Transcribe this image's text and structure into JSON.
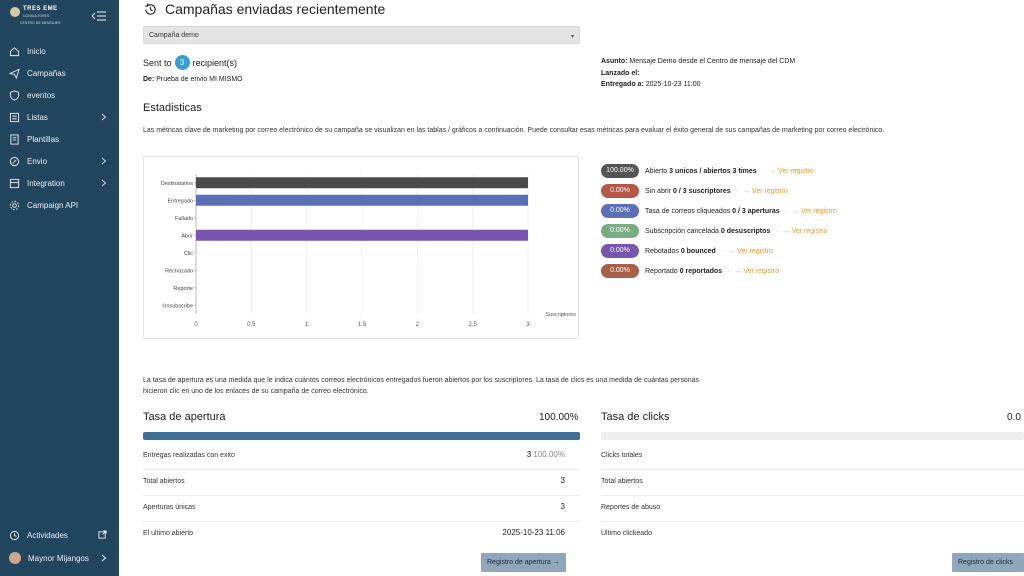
{
  "brand": {
    "name": "TRES EME",
    "sub": "CONSULTORES",
    "sub2": "CENTRO DE MENSAJES"
  },
  "nav": [
    {
      "label": "Inicio",
      "icon": "home-icon",
      "chevron": false
    },
    {
      "label": "Campañas",
      "icon": "send-icon",
      "chevron": false
    },
    {
      "label": "eventos",
      "icon": "shield-icon",
      "chevron": false
    },
    {
      "label": "Listas",
      "icon": "list-icon",
      "chevron": true
    },
    {
      "label": "Plantillas",
      "icon": "template-icon",
      "chevron": false
    },
    {
      "label": "Envio",
      "icon": "edit-icon",
      "chevron": true
    },
    {
      "label": "Integration",
      "icon": "integration-icon",
      "chevron": true
    },
    {
      "label": "Campaign API",
      "icon": "gear-icon",
      "chevron": false
    }
  ],
  "bottom": {
    "activity": "Actividades",
    "user": "Maynor Mijangos"
  },
  "page": {
    "title": "Campañas enviadas recientemente",
    "campaign_select": "Campaña demo",
    "sent_prefix": "Sent to",
    "sent_count": "3",
    "sent_suffix": "recipient(s)",
    "from_label": "De:",
    "from_value": "Prueba de envio MI MISMO",
    "subject_label": "Asunto:",
    "subject_value": "Mensaje Demo desde el Centro de mensaje del CDM",
    "launched_label": "Lanzado el:",
    "delivered_label": "Entregado a:",
    "delivered_value": "2025-10-23 11:00",
    "stats_title": "Estadisticas",
    "stats_desc": "Las métricas clave de marketing por correo electrónico de su campaña se visualizan en las tablas / gráficos a continuación. Puede consultar esas métricas para evaluar el éxito general de sus campañas de marketing por correo electrónico.",
    "note": "La tasa de apertura es una medida que le indica cuántos correos electrónicos entregados fueron abiertos por los suscriptores. La tasa de clics es una medida de cuántas personas hicieron clic en uno de los enlaces de su campaña de correo electrónico."
  },
  "legend": [
    {
      "pct": "100.00%",
      "color": "#555555",
      "pre": "Abierto",
      "bold": "3 unicos / abiertos 3 times",
      "link": "→ Ver registro"
    },
    {
      "pct": "0.00%",
      "color": "#b5584a",
      "pre": "Sin abrir",
      "bold": "0 / 3 suscriptores",
      "link": "→ Ver registro"
    },
    {
      "pct": "0.00%",
      "color": "#5a6fb8",
      "pre": "Tasa de correos cliqueados",
      "bold": "0 / 3 aperturas",
      "link": "→ Ver registro"
    },
    {
      "pct": "0.00%",
      "color": "#7bab85",
      "pre": "Subscripción cancelada",
      "bold": "0 desuscriptos",
      "link": "→ Ver registro"
    },
    {
      "pct": "0.00%",
      "color": "#7a55b0",
      "pre": "Rebotados",
      "bold": "0 bounced",
      "link": "→ Ver registro"
    },
    {
      "pct": "0.00%",
      "color": "#a8604a",
      "pre": "Reportado",
      "bold": "0 reportados",
      "link": "→ Ver registro"
    }
  ],
  "chart_data": {
    "type": "bar",
    "orientation": "horizontal",
    "categories": [
      "Destinatarios",
      "Entregado",
      "Fallado",
      "Abrir",
      "Clic",
      "Rechazado",
      "Reporte",
      "Unsubscribe"
    ],
    "values": [
      3,
      3,
      0,
      3,
      0,
      0,
      0,
      0
    ],
    "colors": [
      "#4a4a4a",
      "#5a6fb8",
      "#b5584a",
      "#7a55b0",
      "#5a6fb8",
      "#b5584a",
      "#a8604a",
      "#7bab85"
    ],
    "xlabel": "Suscriptores",
    "xlim": [
      0,
      3
    ],
    "xticks": [
      "0",
      "0.5",
      "1",
      "1.5",
      "2",
      "2.5",
      "3"
    ]
  },
  "open_rate": {
    "title": "Tasa de apertura",
    "pct": "100.00%",
    "fill": 1.0,
    "rows": [
      {
        "label": "Entregas realizadas con exito",
        "value": "3",
        "extra": "100.00%"
      },
      {
        "label": "Total abiertos",
        "value": "3",
        "extra": ""
      },
      {
        "label": "Aperturas únicas",
        "value": "3",
        "extra": ""
      },
      {
        "label": "El ultimo abierto",
        "value": "2025-10-23 11:06",
        "extra": ""
      }
    ],
    "button": "Registro de apertura →"
  },
  "click_rate": {
    "title": "Tasa de clicks",
    "pct": "0.0",
    "fill": 0.0,
    "rows": [
      {
        "label": "Clicks totales"
      },
      {
        "label": "Total abiertos"
      },
      {
        "label": "Reportes de abuso"
      },
      {
        "label": "Ultimo clickeado"
      }
    ],
    "button": "Registro de clicks"
  }
}
